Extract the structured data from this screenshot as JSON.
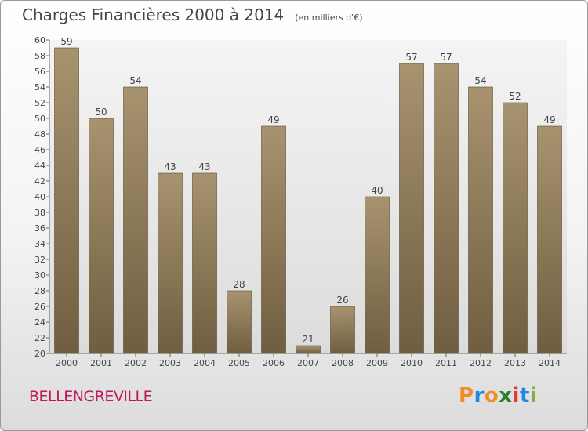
{
  "header": {
    "title": "Charges Financières 2000 à 2014",
    "unit": "(en milliers d'€)"
  },
  "footer": {
    "commune": "BELLENGREVILLE",
    "logo": "Proxiti",
    "logo_colors": [
      "#f28c28",
      "#1e88e5",
      "#f28c28",
      "#2e7d32",
      "#e53935",
      "#1e88e5",
      "#7cb342"
    ]
  },
  "chart_data": {
    "type": "bar",
    "categories": [
      "2000",
      "2001",
      "2002",
      "2003",
      "2004",
      "2005",
      "2006",
      "2007",
      "2008",
      "2009",
      "2010",
      "2011",
      "2012",
      "2013",
      "2014"
    ],
    "values": [
      59,
      50,
      54,
      43,
      43,
      28,
      49,
      21,
      26,
      40,
      57,
      57,
      54,
      52,
      49
    ],
    "title": "Charges Financières 2000 à 2014",
    "ylabel": "",
    "xlabel": "",
    "ylim": [
      20,
      60
    ],
    "ytick_step": 2,
    "grid": false,
    "bar_color": "#a08a68"
  }
}
